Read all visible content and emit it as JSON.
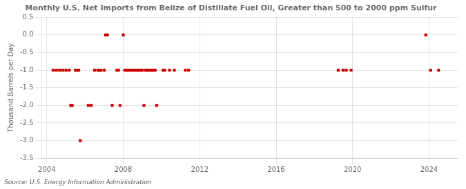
{
  "chart_data": {
    "type": "scatter",
    "title": "Monthly U.S. Net Imports from Belize of Distillate Fuel Oil, Greater than 500 to 2000 ppm Sulfur",
    "ylabel": "Thousand Barrels per Day",
    "annotations": [
      "Source: U.S. Energy Information Administration"
    ],
    "x": [
      2004.33,
      2004.5,
      2004.67,
      2004.83,
      2005.0,
      2005.17,
      2005.25,
      2005.33,
      2005.5,
      2005.58,
      2005.67,
      2005.75,
      2006.17,
      2006.33,
      2006.5,
      2006.67,
      2006.75,
      2006.83,
      2007.0,
      2007.08,
      2007.17,
      2007.42,
      2007.67,
      2007.75,
      2007.83,
      2008.0,
      2008.08,
      2008.17,
      2008.25,
      2008.33,
      2008.42,
      2008.5,
      2008.58,
      2008.67,
      2008.75,
      2008.83,
      2008.92,
      2009.0,
      2009.08,
      2009.17,
      2009.25,
      2009.33,
      2009.42,
      2009.5,
      2009.58,
      2009.67,
      2009.75,
      2010.08,
      2010.17,
      2010.42,
      2010.67,
      2011.25,
      2011.42,
      2019.25,
      2019.5,
      2019.67,
      2019.92,
      2023.83,
      2024.08,
      2024.5
    ],
    "values": [
      -1.0,
      -1.0,
      -1.0,
      -1.0,
      -1.0,
      -1.0,
      -2.0,
      -2.0,
      -1.0,
      -1.0,
      -1.0,
      -3.0,
      -2.0,
      -2.0,
      -1.0,
      -1.0,
      -1.0,
      -1.0,
      -1.0,
      0.0,
      0.0,
      -2.0,
      -1.0,
      -1.0,
      -2.0,
      0.0,
      -1.0,
      -1.0,
      -1.0,
      -1.0,
      -1.0,
      -1.0,
      -1.0,
      -1.0,
      -1.0,
      -1.0,
      -1.0,
      -1.0,
      -2.0,
      -1.0,
      -1.0,
      -1.0,
      -1.0,
      -1.0,
      -1.0,
      -1.0,
      -2.0,
      -1.0,
      -1.0,
      -1.0,
      -1.0,
      -1.0,
      -1.0,
      -1.0,
      -1.0,
      -1.0,
      -1.0,
      0.0,
      -1.0,
      -1.0
    ],
    "color": "#CC0000",
    "marker": "square",
    "xlim": [
      2003.7,
      2025.5
    ],
    "xticks": [
      2004,
      2008,
      2012,
      2016,
      2020,
      2024
    ],
    "ylim": [
      -3.5,
      0.5
    ],
    "yticks": [
      {
        "value": -3.5,
        "label": "-3.5"
      },
      {
        "value": -3,
        "label": "-3.0"
      },
      -2.5,
      {
        "value": -2,
        "label": "-2.0"
      },
      -1.5,
      {
        "value": -1,
        "label": "-1.0"
      },
      -0.5,
      {
        "value": 0,
        "label": "0.0"
      },
      0.5
    ],
    "grid": true
  }
}
